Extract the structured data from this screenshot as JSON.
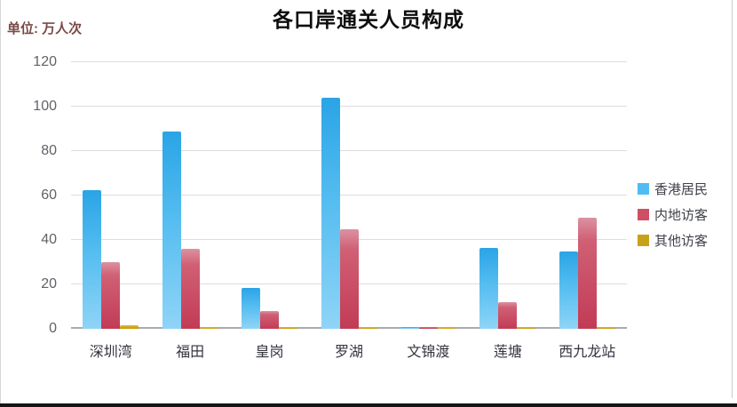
{
  "header": {
    "unit_label": "单位: 万人次",
    "title": "各口岸通关人员构成"
  },
  "chart_data": {
    "type": "bar",
    "title": "各口岸通关人员构成",
    "unit": "万人次",
    "categories": [
      "深圳湾",
      "福田",
      "皇岗",
      "罗湖",
      "文锦渡",
      "莲塘",
      "西九龙站"
    ],
    "series": [
      {
        "name": "香港居民",
        "color": "#4fbcf2",
        "values": [
          62.5,
          89,
          18.5,
          104,
          1,
          36.5,
          35
        ]
      },
      {
        "name": "内地访客",
        "color": "#ce4f64",
        "values": [
          30,
          36,
          8,
          45,
          1,
          12,
          50
        ]
      },
      {
        "name": "其他访客",
        "color": "#c7a11a",
        "values": [
          1.5,
          0.3,
          1,
          1,
          0.3,
          1,
          1
        ]
      }
    ],
    "ylim": [
      0,
      120
    ],
    "yticks": [
      0,
      20,
      40,
      60,
      80,
      100,
      120
    ],
    "grid": true,
    "legend_position": "right"
  },
  "legend": {
    "items": [
      {
        "label": "香港居民",
        "color": "#4fbcf2"
      },
      {
        "label": "内地访客",
        "color": "#ce4f64"
      },
      {
        "label": "其他访客",
        "color": "#c7a11a"
      }
    ]
  }
}
